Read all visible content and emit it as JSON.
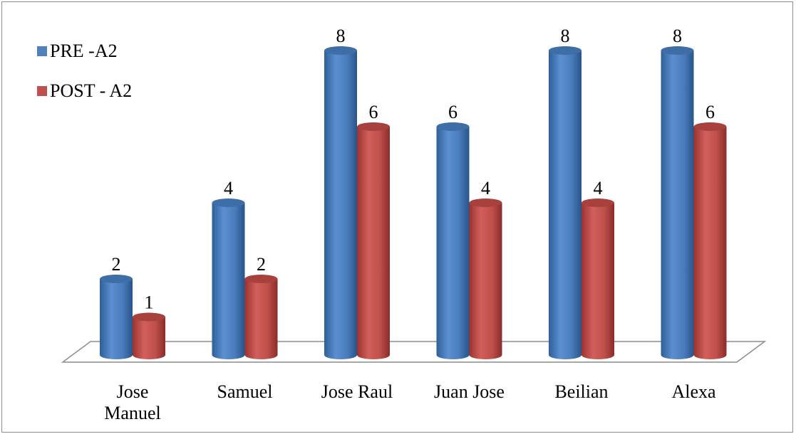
{
  "chart_data": {
    "type": "bar",
    "style": "3d-cylinder",
    "title": "",
    "xlabel": "",
    "ylabel": "",
    "ylim": [
      0,
      8
    ],
    "grid": false,
    "legend_position": "top-left",
    "categories": [
      "Jose Manuel",
      "Samuel",
      "Jose Raul",
      "Juan Jose",
      "Beilian",
      "Alexa"
    ],
    "category_lines": [
      [
        "Jose",
        "Manuel"
      ],
      [
        "Samuel"
      ],
      [
        "Jose Raul"
      ],
      [
        "Juan Jose"
      ],
      [
        "Beilian"
      ],
      [
        "Alexa"
      ]
    ],
    "series": [
      {
        "name": "PRE -A2",
        "values": [
          2,
          4,
          8,
          6,
          8,
          8
        ],
        "color": "#4f81bd"
      },
      {
        "name": "POST - A2",
        "values": [
          1,
          2,
          6,
          4,
          4,
          6
        ],
        "color": "#c0504d"
      }
    ]
  }
}
